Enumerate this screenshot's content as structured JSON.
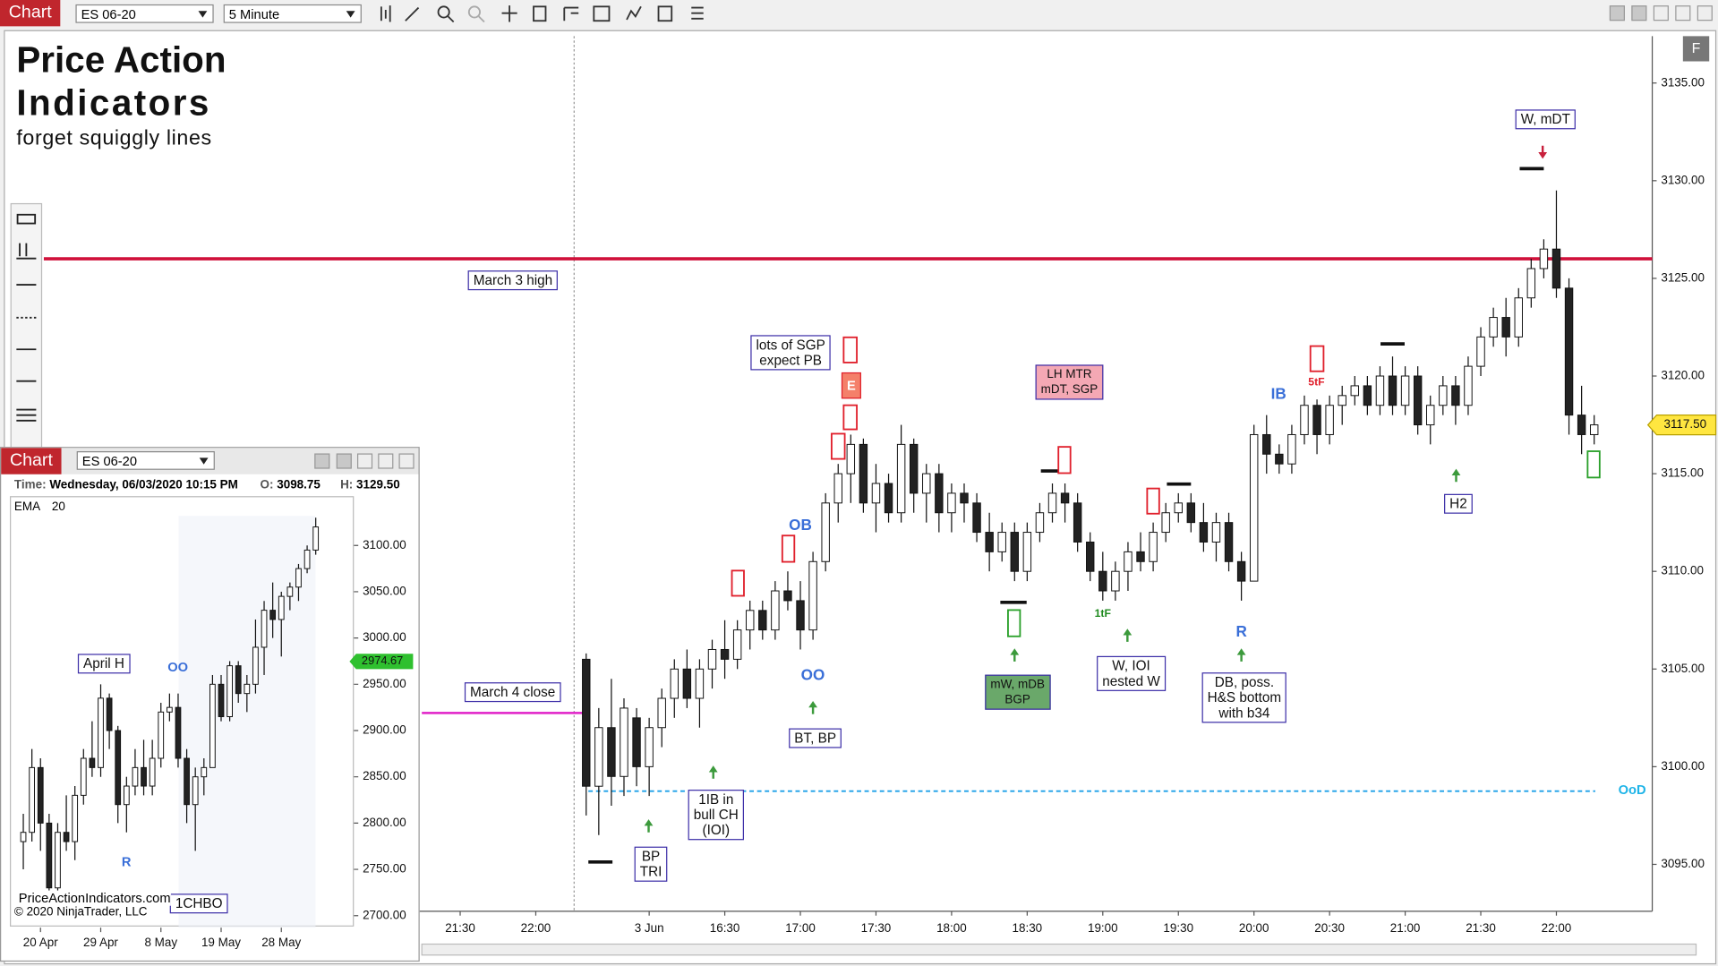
{
  "window": {
    "tab": "Chart",
    "instrument": "ES 06-20",
    "interval": "5 Minute",
    "f_button": "F"
  },
  "branding": {
    "title_line1": "Price Action",
    "title_line2": "Indicators",
    "tagline": "forget squiggly lines"
  },
  "annotations": [
    "lots of SGP\nexpect PB",
    "LH MTR\nmDT, SGP",
    "W, mDT",
    "mW, mDB\nBGP",
    "W, IOI\nnested W",
    "DB, poss.\nH&S bottom\nwith b34",
    "H2",
    "BT, BP",
    "1IB in\nbull CH\n(IOI)",
    "BP\nTRI"
  ],
  "signals": [
    "OB",
    "OO",
    "IB",
    "5tF",
    "1tF",
    "R",
    "E"
  ],
  "chart_data": {
    "type": "candlestick",
    "ylim": [
      3092.6,
      3137.4
    ],
    "yticks": [
      {
        "value": 3095,
        "label": "3095.00"
      },
      {
        "value": 3100,
        "label": "3100.00"
      },
      {
        "value": 3105,
        "label": "3105.00"
      },
      {
        "value": 3110,
        "label": "3110.00"
      },
      {
        "value": 3115,
        "label": "3115.00"
      },
      {
        "value": 3120,
        "label": "3120.00"
      },
      {
        "value": 3125,
        "label": "3125.00"
      },
      {
        "value": 3130,
        "label": "3130.00"
      },
      {
        "value": 3135,
        "label": "3135.00"
      }
    ],
    "grid": false,
    "last_price": {
      "value": 3117.5,
      "label": "3117.50"
    },
    "levels": [
      {
        "label": "March 3 high",
        "value": 3126,
        "color": "#d0103a"
      },
      {
        "label": "March 4 close",
        "value": 3102.75,
        "color": "#e020c8"
      },
      {
        "label": "OoD",
        "value": 3098.75,
        "color": "#1ea0e8"
      }
    ],
    "categories": [
      null,
      null,
      null,
      "21:30",
      null,
      null,
      null,
      null,
      null,
      "22:00",
      null,
      null,
      null,
      null,
      null,
      null,
      null,
      null,
      "3 Jun",
      null,
      null,
      null,
      null,
      null,
      "16:30",
      null,
      null,
      null,
      null,
      null,
      "17:00",
      null,
      null,
      null,
      null,
      null,
      "17:30",
      null,
      null,
      null,
      null,
      null,
      "18:00",
      null,
      null,
      null,
      null,
      null,
      "18:30",
      null,
      null,
      null,
      null,
      null,
      "19:00",
      null,
      null,
      null,
      null,
      null,
      "19:30",
      null,
      null,
      null,
      null,
      null,
      "20:00",
      null,
      null,
      null,
      null,
      null,
      "20:30",
      null,
      null,
      null,
      null,
      null,
      "21:00",
      null,
      null,
      null,
      null,
      null,
      "21:30",
      null,
      null,
      null,
      null,
      null,
      "22:00",
      null,
      null,
      null,
      null,
      null,
      null,
      null
    ],
    "ohlc": [
      null,
      null,
      null,
      null,
      null,
      null,
      null,
      null,
      null,
      null,
      null,
      null,
      null,
      [
        3105.5,
        3105.8,
        3097.5,
        3099
      ],
      [
        3099,
        3103,
        3096.5,
        3102
      ],
      [
        3102,
        3104.5,
        3098,
        3099.5
      ],
      [
        3099.5,
        3103.5,
        3098.5,
        3103
      ],
      [
        3102.5,
        3103,
        3099,
        3100
      ],
      [
        3100,
        3102.5,
        3098.5,
        3102
      ],
      [
        3102,
        3104,
        3101,
        3103.5
      ],
      [
        3103.5,
        3105.5,
        3102.5,
        3105
      ],
      [
        3105,
        3106,
        3103,
        3103.5
      ],
      [
        3103.5,
        3105.5,
        3102,
        3105
      ],
      [
        3105,
        3106.5,
        3104,
        3106
      ],
      [
        3106,
        3107.5,
        3104.5,
        3105.5
      ],
      [
        3105.5,
        3107.5,
        3105,
        3107
      ],
      [
        3107,
        3108.5,
        3106,
        3108
      ],
      [
        3108,
        3108.5,
        3106.5,
        3107
      ],
      [
        3107,
        3109.5,
        3106.5,
        3109
      ],
      [
        3109,
        3110,
        3108,
        3108.5
      ],
      [
        3108.5,
        3109.5,
        3106,
        3107
      ],
      [
        3107,
        3111,
        3106.5,
        3110.5
      ],
      [
        3110.5,
        3114,
        3110,
        3113.5
      ],
      [
        3113.5,
        3115.5,
        3112.5,
        3115
      ],
      [
        3115,
        3117,
        3113.5,
        3116.5
      ],
      [
        3116.5,
        3116.8,
        3113,
        3113.5
      ],
      [
        3113.5,
        3115.5,
        3112,
        3114.5
      ],
      [
        3114.5,
        3115,
        3112.5,
        3113
      ],
      [
        3113,
        3117.5,
        3112.5,
        3116.5
      ],
      [
        3116.5,
        3116.8,
        3113,
        3114
      ],
      [
        3114,
        3115.5,
        3112.5,
        3115
      ],
      [
        3115,
        3115.5,
        3112,
        3113
      ],
      [
        3113,
        3114.5,
        3112,
        3114
      ],
      [
        3114,
        3114.5,
        3112.5,
        3113.5
      ],
      [
        3113.5,
        3114,
        3111.5,
        3112
      ],
      [
        3112,
        3113,
        3110,
        3111
      ],
      [
        3111,
        3112.5,
        3110.5,
        3112
      ],
      [
        3112,
        3112.5,
        3109.5,
        3110
      ],
      [
        3110,
        3112.5,
        3109.5,
        3112
      ],
      [
        3112,
        3113.5,
        3111.5,
        3113
      ],
      [
        3113,
        3114.5,
        3112.5,
        3114
      ],
      [
        3114,
        3114.5,
        3112.5,
        3113.5
      ],
      [
        3113.5,
        3114,
        3111,
        3111.5
      ],
      [
        3111.5,
        3112,
        3109.5,
        3110
      ],
      [
        3110,
        3111,
        3108.5,
        3109
      ],
      [
        3109,
        3110.5,
        3108.5,
        3110
      ],
      [
        3110,
        3111.5,
        3109,
        3111
      ],
      [
        3111,
        3112,
        3110,
        3110.5
      ],
      [
        3110.5,
        3112.5,
        3110,
        3112
      ],
      [
        3112,
        3113.5,
        3111.5,
        3113
      ],
      [
        3113,
        3114,
        3112.5,
        3113.5
      ],
      [
        3113.5,
        3114,
        3112,
        3112.5
      ],
      [
        3112.5,
        3113.5,
        3111,
        3111.5
      ],
      [
        3111.5,
        3113,
        3110.5,
        3112.5
      ],
      [
        3112.5,
        3113,
        3110,
        3110.5
      ],
      [
        3110.5,
        3111,
        3108.5,
        3109.5
      ],
      [
        3109.5,
        3117.5,
        3109.5,
        3117
      ],
      [
        3117,
        3118,
        3115,
        3116
      ],
      [
        3116,
        3116.5,
        3115,
        3115.5
      ],
      [
        3115.5,
        3117.5,
        3115,
        3117
      ],
      [
        3117,
        3119,
        3116.5,
        3118.5
      ],
      [
        3118.5,
        3118.8,
        3116,
        3117
      ],
      [
        3117,
        3119,
        3116.5,
        3118.5
      ],
      [
        3118.5,
        3119.5,
        3117.5,
        3119
      ],
      [
        3119,
        3120,
        3118.5,
        3119.5
      ],
      [
        3119.5,
        3120,
        3118,
        3118.5
      ],
      [
        3118.5,
        3120.5,
        3118,
        3120
      ],
      [
        3120,
        3121,
        3118,
        3118.5
      ],
      [
        3118.5,
        3120.5,
        3118,
        3120
      ],
      [
        3120,
        3120.5,
        3117,
        3117.5
      ],
      [
        3117.5,
        3119,
        3116.5,
        3118.5
      ],
      [
        3118.5,
        3120,
        3118,
        3119.5
      ],
      [
        3119.5,
        3120,
        3117.5,
        3118.5
      ],
      [
        3118.5,
        3121,
        3118,
        3120.5
      ],
      [
        3120.5,
        3122.5,
        3120,
        3122
      ],
      [
        3122,
        3123.5,
        3121.5,
        3123
      ],
      [
        3123,
        3124,
        3121,
        3122
      ],
      [
        3122,
        3124.5,
        3121.5,
        3124
      ],
      [
        3124,
        3126,
        3123.5,
        3125.5
      ],
      [
        3125.5,
        3127,
        3125,
        3126.5
      ],
      [
        3126.5,
        3129.5,
        3124,
        3124.5
      ],
      [
        3124.5,
        3125,
        3117,
        3118
      ],
      [
        3118,
        3119.5,
        3116,
        3117
      ],
      [
        3117,
        3118,
        3116.5,
        3117.5
      ],
      null,
      null,
      null,
      null
    ]
  },
  "inset": {
    "tab": "Chart",
    "instrument": "ES 06-20",
    "time_label": "Time:",
    "time_value": "Wednesday, 06/03/2020 10:15 PM",
    "open_label": "O:",
    "open": "3098.75",
    "high_label": "H:",
    "high": "3129.50",
    "indicator": "EMA",
    "ema_period": 20,
    "ema_value": 2974.67,
    "annotations": [
      "April H",
      "OO",
      "R",
      "1CHBO"
    ],
    "footer": [
      "PriceActionIndicators.com",
      "© 2020 NinjaTrader, LLC"
    ],
    "chart": {
      "type": "candlestick",
      "ylim": [
        2687,
        3152.1
      ],
      "yticks": [
        {
          "value": 2700,
          "label": "2700.00"
        },
        {
          "value": 2750,
          "label": "2750.00"
        },
        {
          "value": 2800,
          "label": "2800.00"
        },
        {
          "value": 2850,
          "label": "2850.00"
        },
        {
          "value": 2900,
          "label": "2900.00"
        },
        {
          "value": 2950,
          "label": "2950.00"
        },
        {
          "value": 3000,
          "label": "3000.00"
        },
        {
          "value": 3050,
          "label": "3050.00"
        },
        {
          "value": 3100,
          "label": "3100.00"
        }
      ],
      "categories": [
        null,
        null,
        null,
        "20 Apr",
        null,
        null,
        null,
        null,
        null,
        null,
        "29 Apr",
        null,
        null,
        null,
        null,
        null,
        null,
        "8 May",
        null,
        null,
        null,
        null,
        null,
        null,
        "19 May",
        null,
        null,
        null,
        null,
        null,
        null,
        "28 May",
        null,
        null,
        null,
        null,
        null,
        null,
        null,
        null
      ],
      "ohlc": [
        null,
        [
          2780,
          2810,
          2750,
          2790
        ],
        [
          2790,
          2880,
          2780,
          2860
        ],
        [
          2860,
          2870,
          2770,
          2800
        ],
        [
          2800,
          2810,
          2720,
          2730
        ],
        [
          2730,
          2800,
          2720,
          2790
        ],
        [
          2790,
          2830,
          2770,
          2780
        ],
        [
          2780,
          2840,
          2760,
          2830
        ],
        [
          2830,
          2880,
          2820,
          2870
        ],
        [
          2870,
          2910,
          2850,
          2860
        ],
        [
          2860,
          2950,
          2850,
          2935
        ],
        [
          2935,
          2940,
          2880,
          2900
        ],
        [
          2900,
          2905,
          2800,
          2820
        ],
        [
          2820,
          2850,
          2790,
          2840
        ],
        [
          2840,
          2880,
          2830,
          2860
        ],
        [
          2860,
          2890,
          2830,
          2840
        ],
        [
          2840,
          2890,
          2830,
          2870
        ],
        [
          2870,
          2930,
          2860,
          2920
        ],
        [
          2920,
          2940,
          2910,
          2925
        ],
        [
          2925,
          2940,
          2860,
          2870
        ],
        [
          2870,
          2880,
          2800,
          2820
        ],
        [
          2820,
          2860,
          2770,
          2850
        ],
        [
          2850,
          2870,
          2830,
          2860
        ],
        [
          2860,
          2960,
          2860,
          2950
        ],
        [
          2950,
          2960,
          2910,
          2915
        ],
        [
          2915,
          2975,
          2910,
          2970
        ],
        [
          2970,
          2975,
          2930,
          2940
        ],
        [
          2940,
          2960,
          2920,
          2950
        ],
        [
          2950,
          3020,
          2940,
          2990
        ],
        [
          2990,
          3040,
          2960,
          3030
        ],
        [
          3030,
          3060,
          3000,
          3020
        ],
        [
          3020,
          3050,
          2980,
          3045
        ],
        [
          3045,
          3060,
          3030,
          3055
        ],
        [
          3055,
          3080,
          3040,
          3075
        ],
        [
          3075,
          3100,
          3070,
          3095
        ],
        [
          3095,
          3130,
          3090,
          3120
        ],
        null,
        null,
        null,
        null
      ]
    }
  }
}
